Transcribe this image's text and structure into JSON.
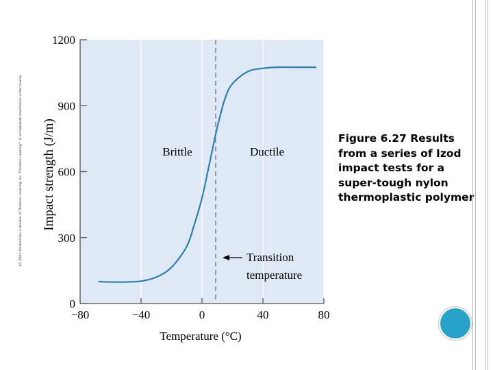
{
  "slide": {
    "copyright_text": "(c) 2003 Brooks/Cole, a division of Thomson Learning, Inc. Thomson Learning™ is a trademark used herein under license.",
    "caption": "Figure 6.27 Results from a series of Izod impact tests for a super-tough nylon thermoplastic polymer"
  },
  "colors": {
    "plot_bg": "#dfe9f5",
    "curve": "#2d7fb3",
    "accent_circle": "#27a2c9"
  },
  "chart_data": {
    "type": "line",
    "title": "",
    "xlabel": "Temperature (°C)",
    "ylabel": "Impact strength (J/m)",
    "xlim": [
      -80,
      80
    ],
    "ylim": [
      0,
      1200
    ],
    "xticks": [
      -80,
      -40,
      0,
      40,
      80
    ],
    "xtick_labels": [
      "−80",
      "−40",
      "0",
      "40",
      "80"
    ],
    "yticks": [
      0,
      300,
      600,
      900,
      1200
    ],
    "ytick_labels": [
      "0",
      "300",
      "600",
      "900",
      "1200"
    ],
    "grid": "vertical",
    "series": [
      {
        "name": "Impact strength",
        "x": [
          -68,
          -60,
          -50,
          -40,
          -30,
          -20,
          -10,
          -5,
          0,
          5,
          10,
          15,
          20,
          30,
          40,
          50,
          60,
          68,
          75
        ],
        "y": [
          100,
          98,
          98,
          102,
          120,
          165,
          260,
          360,
          480,
          640,
          800,
          930,
          1000,
          1055,
          1070,
          1075,
          1075,
          1075,
          1075
        ]
      }
    ],
    "transition_temperature": 9,
    "annotations": {
      "brittle": "Brittle",
      "ductile": "Ductile",
      "transition_line1": "Transition",
      "transition_line2": "temperature"
    }
  }
}
